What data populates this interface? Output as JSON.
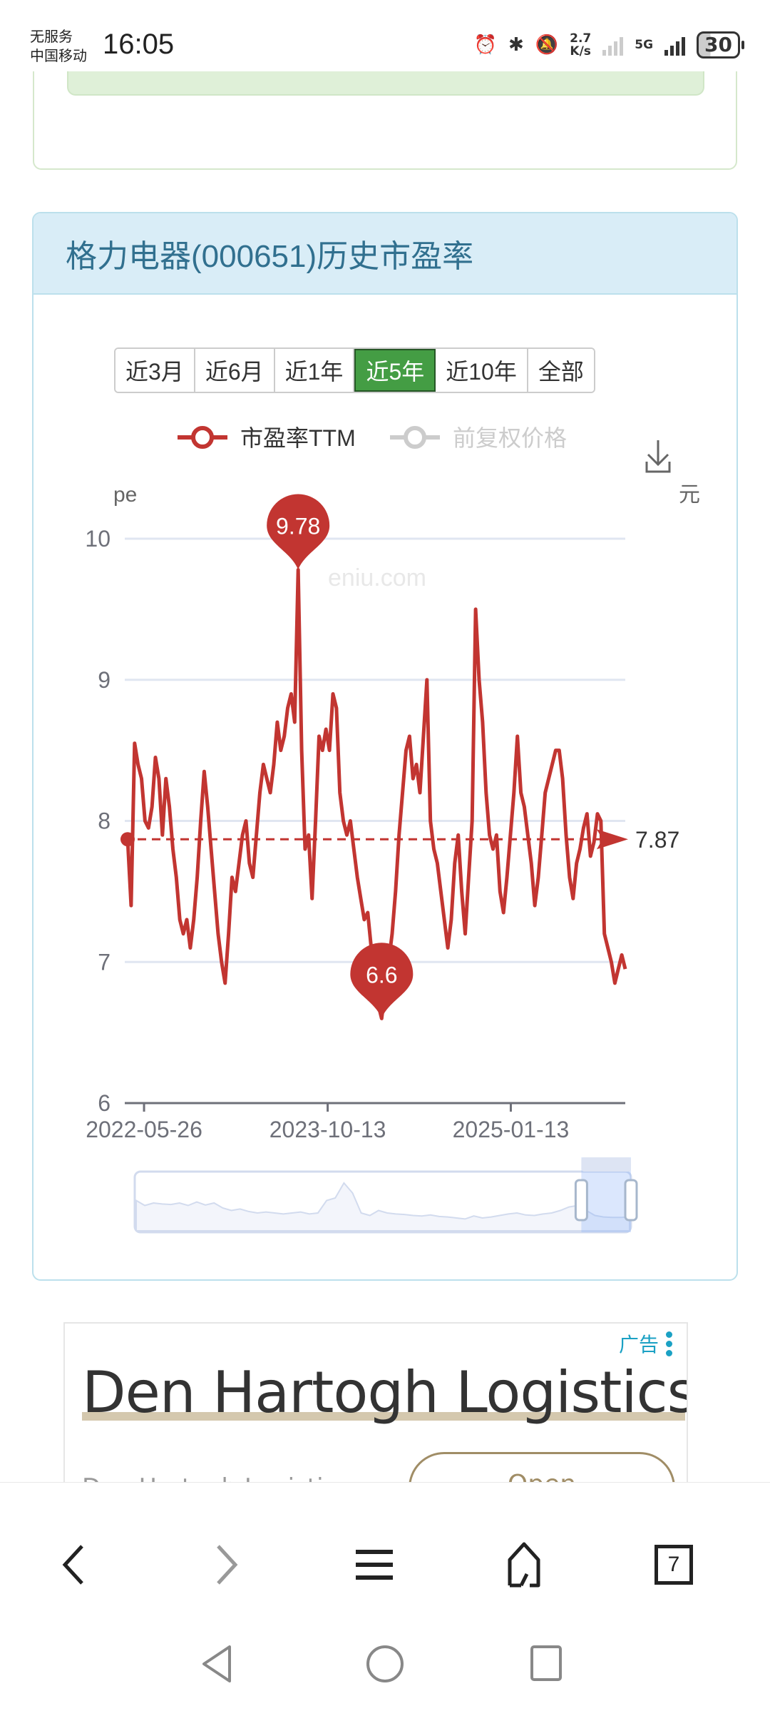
{
  "status_bar": {
    "carrier_line1": "无服务",
    "carrier_line2": "中国移动",
    "time": "16:05",
    "net_speed_value": "2.7",
    "net_speed_unit": "K/s",
    "network_type": "5G",
    "battery": "30",
    "icons": [
      "alarm-icon",
      "bluetooth-icon",
      "bell-muted-icon",
      "signal-sim1-icon",
      "signal-5g-icon",
      "battery-icon"
    ]
  },
  "pe_card": {
    "title": "格力电器(000651)历史市盈率",
    "range_buttons": [
      {
        "label": "近3月",
        "active": false
      },
      {
        "label": "近6月",
        "active": false
      },
      {
        "label": "近1年",
        "active": false
      },
      {
        "label": "近5年",
        "active": true
      },
      {
        "label": "近10年",
        "active": false
      },
      {
        "label": "全部",
        "active": false
      }
    ],
    "download_icon": "download-icon"
  },
  "chart_data": {
    "type": "line",
    "title": "格力电器(000651)历史市盈率",
    "watermark": "eniu.com",
    "legend": [
      {
        "name": "市盈率TTM",
        "color": "#c23531",
        "active": true
      },
      {
        "name": "前复权价格",
        "color": "#cccccc",
        "active": false
      }
    ],
    "legend_position": "top-center",
    "ylabel": "pe",
    "ylabel_right": "元",
    "ylim": [
      6,
      10
    ],
    "yticks": [
      "6",
      "7",
      "8",
      "9",
      "10"
    ],
    "xticks": [
      "2022-05-26",
      "2023-10-13",
      "2025-01-13"
    ],
    "grid": true,
    "series": [
      {
        "name": "市盈率TTM",
        "color": "#c23531",
        "values": [
          7.87,
          7.4,
          8.55,
          8.4,
          8.3,
          8.0,
          7.95,
          8.1,
          8.45,
          8.3,
          7.9,
          8.3,
          8.1,
          7.8,
          7.6,
          7.3,
          7.2,
          7.3,
          7.1,
          7.3,
          7.6,
          8.0,
          8.35,
          8.1,
          7.8,
          7.5,
          7.2,
          7.0,
          6.85,
          7.2,
          7.6,
          7.5,
          7.7,
          7.9,
          8.0,
          7.7,
          7.6,
          7.9,
          8.2,
          8.4,
          8.3,
          8.2,
          8.4,
          8.7,
          8.5,
          8.6,
          8.8,
          8.9,
          8.7,
          9.78,
          8.5,
          7.8,
          7.9,
          7.45,
          8.0,
          8.6,
          8.5,
          8.65,
          8.5,
          8.9,
          8.8,
          8.2,
          8.0,
          7.9,
          8.0,
          7.8,
          7.6,
          7.45,
          7.3,
          7.35,
          7.1,
          6.9,
          6.7,
          6.6,
          6.8,
          7.0,
          7.2,
          7.5,
          7.9,
          8.2,
          8.5,
          8.6,
          8.3,
          8.4,
          8.2,
          8.6,
          9.0,
          8.0,
          7.8,
          7.7,
          7.5,
          7.3,
          7.1,
          7.3,
          7.7,
          7.9,
          7.5,
          7.2,
          7.6,
          8.0,
          9.5,
          9.0,
          8.7,
          8.2,
          7.9,
          7.8,
          7.9,
          7.5,
          7.35,
          7.6,
          7.9,
          8.2,
          8.6,
          8.2,
          8.1,
          7.9,
          7.7,
          7.4,
          7.6,
          7.9,
          8.2,
          8.3,
          8.4,
          8.5,
          8.5,
          8.3,
          7.9,
          7.6,
          7.45,
          7.7,
          7.8,
          7.95,
          8.05,
          7.75,
          7.85,
          8.05,
          8.0,
          7.2,
          7.1,
          7.0,
          6.85,
          6.95,
          7.05,
          6.95
        ]
      }
    ],
    "mark_points": [
      {
        "label": "9.78",
        "type": "max",
        "value": 9.78
      },
      {
        "label": "6.6",
        "type": "min",
        "value": 6.6
      }
    ],
    "mark_line": {
      "label": "7.87",
      "type": "average",
      "value": 7.87
    },
    "data_zoom": {
      "start_percent": 90,
      "end_percent": 100
    }
  },
  "ad": {
    "badge": "广告",
    "title": "Den Hartogh Logistics",
    "subtitle": "Den Hartogh Logistics",
    "cta": "Open"
  },
  "browser_bar": {
    "back": "back-icon",
    "forward": "forward-icon",
    "menu": "menu-icon",
    "home": "home-icon",
    "tabs_count": "7"
  },
  "system_nav": {
    "back": "nav-back-icon",
    "home": "nav-home-icon",
    "recents": "nav-recents-icon"
  }
}
